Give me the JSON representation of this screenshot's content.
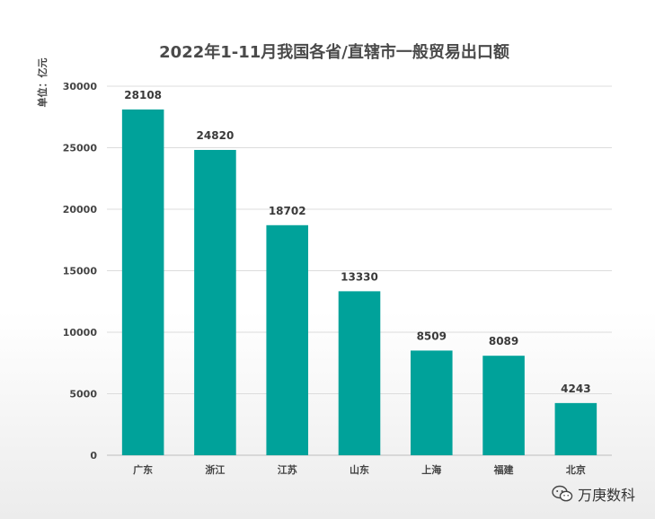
{
  "chart_data": {
    "type": "bar",
    "title": "2022年1-11月我国各省/直辖市一般贸易出口额",
    "unit_label": "单位：亿元",
    "categories": [
      "广东",
      "浙江",
      "江苏",
      "山东",
      "上海",
      "福建",
      "北京"
    ],
    "values": [
      28108,
      24820,
      18702,
      13330,
      8509,
      8089,
      4243
    ],
    "ylim": [
      0,
      30000
    ],
    "yticks": [
      0,
      5000,
      10000,
      15000,
      20000,
      25000,
      30000
    ],
    "grid": true,
    "legend": "none",
    "bar_color": "#00a29a"
  },
  "watermark": {
    "text": "万庚数科",
    "icon": "wechat-icon"
  }
}
